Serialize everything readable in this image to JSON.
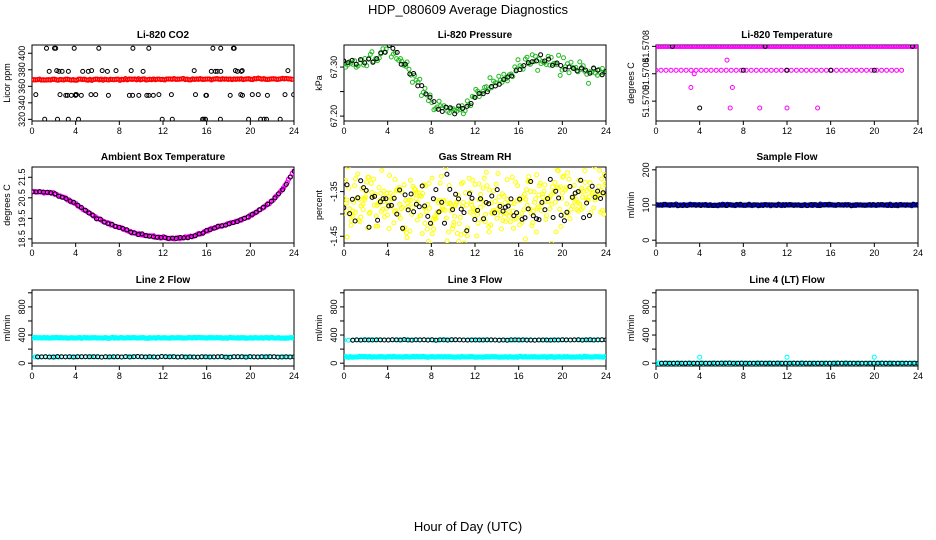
{
  "figure": {
    "title": "HDP_080609  Average Diagnostics",
    "xlabel": "Hour of Day (UTC)"
  },
  "chart_data": [
    {
      "id": "co2",
      "type": "scatter",
      "title": "Li-820 CO2",
      "ylabel": "Licor ppm",
      "xlim": [
        0,
        24
      ],
      "xticks": [
        0,
        4,
        8,
        12,
        16,
        20,
        24
      ],
      "xtick_labels": [
        "0",
        "4",
        "8",
        "12",
        "16",
        "20",
        "24"
      ],
      "ylim": [
        318,
        410
      ],
      "yticks": [
        320,
        340,
        360,
        380,
        400
      ],
      "ytick_labels": [
        "320",
        "340",
        "360",
        "380",
        "400"
      ],
      "series": [
        {
          "name": "co2-red",
          "color": "#ff0000",
          "gen": "flat",
          "x0": 0,
          "x1": 23.8,
          "n": 140,
          "y0": 368,
          "y1": 369,
          "noise": 0.4,
          "dense": true
        },
        {
          "name": "co2-black",
          "color": "#000000",
          "gen": "levels",
          "n": 80,
          "levels": [
            320,
            349,
            350,
            378,
            379,
            406
          ],
          "seed": 3
        }
      ]
    },
    {
      "id": "pressure",
      "type": "scatter",
      "title": "Li-820 Pressure",
      "ylabel": "kPa",
      "xlim": [
        0,
        24
      ],
      "xticks": [
        0,
        4,
        8,
        12,
        16,
        20,
        24
      ],
      "xtick_labels": [
        "0",
        "4",
        "8",
        "12",
        "16",
        "20",
        "24"
      ],
      "ylim": [
        67.19,
        67.345
      ],
      "yticks": [
        67.2,
        67.25,
        67.3
      ],
      "ytick_labels": [
        "67.20",
        "",
        "67.30"
      ],
      "series": [
        {
          "name": "pressure-green",
          "color": "#22bb22",
          "gen": "curve",
          "n": 150,
          "noise": 0.008,
          "curve": [
            [
              0,
              67.31
            ],
            [
              1,
              67.305
            ],
            [
              2,
              67.31
            ],
            [
              3,
              67.315
            ],
            [
              4,
              67.34
            ],
            [
              5,
              67.32
            ],
            [
              6,
              67.29
            ],
            [
              7,
              67.26
            ],
            [
              8,
              67.23
            ],
            [
              9,
              67.215
            ],
            [
              10,
              67.21
            ],
            [
              11,
              67.215
            ],
            [
              12,
              67.24
            ],
            [
              13,
              67.255
            ],
            [
              14,
              67.27
            ],
            [
              15,
              67.28
            ],
            [
              16,
              67.295
            ],
            [
              17,
              67.31
            ],
            [
              18,
              67.315
            ],
            [
              19,
              67.31
            ],
            [
              20,
              67.3
            ],
            [
              22,
              67.295
            ],
            [
              24,
              67.285
            ]
          ]
        },
        {
          "name": "pressure-black",
          "color": "#000000",
          "gen": "curve",
          "n": 65,
          "noise": 0.005,
          "curve": [
            [
              0,
              67.31
            ],
            [
              1,
              67.305
            ],
            [
              2,
              67.31
            ],
            [
              3,
              67.315
            ],
            [
              4,
              67.34
            ],
            [
              5,
              67.32
            ],
            [
              6,
              67.29
            ],
            [
              7,
              67.26
            ],
            [
              8,
              67.23
            ],
            [
              9,
              67.215
            ],
            [
              10,
              67.21
            ],
            [
              11,
              67.215
            ],
            [
              12,
              67.24
            ],
            [
              13,
              67.255
            ],
            [
              14,
              67.27
            ],
            [
              15,
              67.28
            ],
            [
              16,
              67.295
            ],
            [
              17,
              67.31
            ],
            [
              18,
              67.315
            ],
            [
              19,
              67.31
            ],
            [
              20,
              67.3
            ],
            [
              22,
              67.295
            ],
            [
              24,
              67.285
            ]
          ]
        }
      ]
    },
    {
      "id": "temperature",
      "type": "scatter",
      "title": "Li-820 Temperature",
      "ylabel": "degrees C",
      "xlim": [
        0,
        24
      ],
      "xticks": [
        0,
        4,
        8,
        12,
        16,
        20,
        24
      ],
      "xtick_labels": [
        "0",
        "4",
        "8",
        "12",
        "16",
        "20",
        "24"
      ],
      "ylim": [
        51.56971,
        51.57082
      ],
      "yticks": [
        51.57,
        51.5704,
        51.5708
      ],
      "ytick_labels": [
        "51.5700",
        "51.5704",
        "51.5708"
      ],
      "series": [
        {
          "name": "temp-magenta-top",
          "color": "#ff00ff",
          "gen": "flat",
          "x0": 0,
          "x1": 24,
          "n": 110,
          "y0": 51.5708,
          "y1": 51.5708,
          "noise": 0,
          "dense": true
        },
        {
          "name": "temp-magenta-mid",
          "color": "#ff00ff",
          "gen": "flat",
          "x0": 0,
          "x1": 22.5,
          "n": 50,
          "y0": 51.57045,
          "y1": 51.57045,
          "noise": 0
        },
        {
          "name": "temp-magenta-sparse",
          "color": "#ff00ff",
          "gen": "points",
          "x": [
            3.2,
            3.5,
            6.5,
            7.0,
            9.5,
            12.0,
            14.8,
            6.8
          ],
          "y": [
            51.5702,
            51.5704,
            51.5706,
            51.5702,
            51.5699,
            51.5699,
            51.5699,
            51.5699
          ]
        },
        {
          "name": "temp-black",
          "color": "#000000",
          "gen": "points",
          "x": [
            4.0,
            8.0,
            12.0,
            16.0,
            20.0,
            23.5,
            1.5,
            10.0
          ],
          "y": [
            51.5699,
            51.57045,
            51.57045,
            51.57045,
            51.57045,
            51.5708,
            51.5708,
            51.5708
          ]
        }
      ]
    },
    {
      "id": "ambient",
      "type": "scatter",
      "title": "Ambient Box Temperature",
      "ylabel": "degrees C",
      "xlim": [
        0,
        24
      ],
      "xticks": [
        0,
        4,
        8,
        12,
        16,
        20,
        24
      ],
      "xtick_labels": [
        "0",
        "4",
        "8",
        "12",
        "16",
        "20",
        "24"
      ],
      "ylim": [
        18.3,
        22.0
      ],
      "yticks": [
        18.5,
        19.5,
        20.5,
        21.5
      ],
      "ytick_labels": [
        "18.5",
        "19.5",
        "20.5",
        "21.5"
      ],
      "series": [
        {
          "name": "ambient-magenta",
          "color": "#ff00ff",
          "gen": "curve",
          "n": 150,
          "noise": 0.02,
          "dense": true,
          "curve": [
            [
              0,
              20.8
            ],
            [
              1,
              20.78
            ],
            [
              2,
              20.72
            ],
            [
              3,
              20.5
            ],
            [
              4,
              20.2
            ],
            [
              5,
              19.85
            ],
            [
              6,
              19.5
            ],
            [
              7,
              19.25
            ],
            [
              8,
              19.05
            ],
            [
              9,
              18.85
            ],
            [
              10,
              18.72
            ],
            [
              11,
              18.62
            ],
            [
              12,
              18.55
            ],
            [
              13,
              18.52
            ],
            [
              14,
              18.55
            ],
            [
              15,
              18.68
            ],
            [
              16,
              18.88
            ],
            [
              17,
              19.08
            ],
            [
              18,
              19.22
            ],
            [
              19,
              19.4
            ],
            [
              20,
              19.62
            ],
            [
              21,
              19.95
            ],
            [
              22,
              20.35
            ],
            [
              23,
              20.95
            ],
            [
              24,
              21.8
            ]
          ]
        },
        {
          "name": "ambient-black",
          "color": "#000000",
          "gen": "curve",
          "n": 70,
          "noise": 0.02,
          "curve": [
            [
              0,
              20.8
            ],
            [
              1,
              20.78
            ],
            [
              2,
              20.72
            ],
            [
              3,
              20.5
            ],
            [
              4,
              20.2
            ],
            [
              5,
              19.85
            ],
            [
              6,
              19.5
            ],
            [
              7,
              19.25
            ],
            [
              8,
              19.05
            ],
            [
              9,
              18.85
            ],
            [
              10,
              18.72
            ],
            [
              11,
              18.62
            ],
            [
              12,
              18.55
            ],
            [
              13,
              18.52
            ],
            [
              14,
              18.55
            ],
            [
              15,
              18.68
            ],
            [
              16,
              18.88
            ],
            [
              17,
              19.08
            ],
            [
              18,
              19.22
            ],
            [
              19,
              19.4
            ],
            [
              20,
              19.62
            ],
            [
              21,
              19.95
            ],
            [
              22,
              20.35
            ],
            [
              23,
              20.95
            ],
            [
              24,
              21.8
            ]
          ]
        }
      ]
    },
    {
      "id": "rh",
      "type": "scatter",
      "title": "Gas Stream RH",
      "ylabel": "percent",
      "xlim": [
        0,
        24
      ],
      "xticks": [
        0,
        4,
        8,
        12,
        16,
        20,
        24
      ],
      "xtick_labels": [
        "0",
        "4",
        "8",
        "12",
        "16",
        "20",
        "24"
      ],
      "ylim": [
        -1.465,
        -1.295
      ],
      "yticks": [
        -1.45,
        -1.4,
        -1.35
      ],
      "ytick_labels": [
        "-1.45",
        "",
        "-1.35"
      ],
      "series": [
        {
          "name": "rh-yellow",
          "color": "#ffff00",
          "gen": "curve",
          "n": 380,
          "noise": 0.038,
          "curve": [
            [
              0,
              -1.37
            ],
            [
              4,
              -1.375
            ],
            [
              8,
              -1.38
            ],
            [
              12,
              -1.39
            ],
            [
              16,
              -1.385
            ],
            [
              20,
              -1.37
            ],
            [
              24,
              -1.34
            ]
          ]
        },
        {
          "name": "rh-black",
          "color": "#000000",
          "gen": "curve",
          "n": 95,
          "noise": 0.026,
          "curve": [
            [
              0,
              -1.37
            ],
            [
              4,
              -1.375
            ],
            [
              8,
              -1.385
            ],
            [
              12,
              -1.395
            ],
            [
              16,
              -1.385
            ],
            [
              20,
              -1.37
            ],
            [
              24,
              -1.34
            ]
          ]
        }
      ]
    },
    {
      "id": "sample",
      "type": "scatter",
      "title": "Sample Flow",
      "ylabel": "ml/min",
      "xlim": [
        0,
        24
      ],
      "xticks": [
        0,
        4,
        8,
        12,
        16,
        20,
        24
      ],
      "xtick_labels": [
        "0",
        "4",
        "8",
        "12",
        "16",
        "20",
        "24"
      ],
      "ylim": [
        -8,
        208
      ],
      "yticks": [
        0,
        100,
        200
      ],
      "ytick_labels": [
        "0",
        "100",
        "200"
      ],
      "series": [
        {
          "name": "sample-blue",
          "color": "#0000cc",
          "gen": "flat",
          "x0": 0,
          "x1": 24,
          "n": 170,
          "y0": 100,
          "y1": 100,
          "noise": 1,
          "dense": true
        },
        {
          "name": "sample-black",
          "color": "#000000",
          "gen": "flat",
          "x0": 0,
          "x1": 24,
          "n": 60,
          "y0": 100,
          "y1": 100,
          "noise": 1
        }
      ]
    },
    {
      "id": "line2",
      "type": "scatter",
      "title": "Line 2 Flow",
      "ylabel": "ml/min",
      "xlim": [
        0,
        24
      ],
      "xticks": [
        0,
        4,
        8,
        12,
        16,
        20,
        24
      ],
      "xtick_labels": [
        "0",
        "4",
        "8",
        "12",
        "16",
        "20",
        "24"
      ],
      "ylim": [
        -40,
        1040
      ],
      "yticks": [
        0,
        200,
        400,
        600,
        800,
        1000
      ],
      "ytick_labels": [
        "0",
        "",
        "400",
        "",
        "800",
        ""
      ],
      "series": [
        {
          "name": "line2-cyan-high",
          "color": "#00ffff",
          "gen": "flat",
          "x0": 0,
          "x1": 24,
          "n": 170,
          "y0": 360,
          "y1": 360,
          "noise": 3,
          "dense": true
        },
        {
          "name": "line2-cyan-low",
          "color": "#00ffff",
          "gen": "flat",
          "x0": 0,
          "x1": 24,
          "n": 80,
          "y0": 90,
          "y1": 90,
          "noise": 2
        },
        {
          "name": "line2-black",
          "color": "#000000",
          "gen": "flat",
          "x0": 0.5,
          "x1": 24,
          "n": 65,
          "y0": 90,
          "y1": 90,
          "noise": 2
        }
      ]
    },
    {
      "id": "line3",
      "type": "scatter",
      "title": "Line 3 Flow",
      "ylabel": "ml/min",
      "xlim": [
        0,
        24
      ],
      "xticks": [
        0,
        4,
        8,
        12,
        16,
        20,
        24
      ],
      "xtick_labels": [
        "0",
        "4",
        "8",
        "12",
        "16",
        "20",
        "24"
      ],
      "ylim": [
        -40,
        1040
      ],
      "yticks": [
        0,
        200,
        400,
        600,
        800,
        1000
      ],
      "ytick_labels": [
        "0",
        "",
        "400",
        "",
        "800",
        ""
      ],
      "series": [
        {
          "name": "line3-cyan-low",
          "color": "#00ffff",
          "gen": "flat",
          "x0": 0,
          "x1": 24,
          "n": 170,
          "y0": 90,
          "y1": 90,
          "noise": 3,
          "dense": true
        },
        {
          "name": "line3-cyan-high",
          "color": "#00ffff",
          "gen": "flat",
          "x0": 0,
          "x1": 24,
          "n": 60,
          "y0": 330,
          "y1": 330,
          "noise": 2
        },
        {
          "name": "line3-black",
          "color": "#000000",
          "gen": "flat",
          "x0": 0.8,
          "x1": 24,
          "n": 65,
          "y0": 330,
          "y1": 330,
          "noise": 2
        }
      ]
    },
    {
      "id": "line4",
      "type": "scatter",
      "title": "Line 4 (LT) Flow",
      "ylabel": "ml/min",
      "xlim": [
        0,
        24
      ],
      "xticks": [
        0,
        4,
        8,
        12,
        16,
        20,
        24
      ],
      "xtick_labels": [
        "0",
        "4",
        "8",
        "12",
        "16",
        "20",
        "24"
      ],
      "ylim": [
        -40,
        1040
      ],
      "yticks": [
        0,
        200,
        400,
        600,
        800,
        1000
      ],
      "ytick_labels": [
        "0",
        "",
        "400",
        "",
        "800",
        ""
      ],
      "series": [
        {
          "name": "line4-cyan",
          "color": "#00ffff",
          "gen": "flat",
          "x0": 0,
          "x1": 24,
          "n": 90,
          "y0": 0,
          "y1": 0,
          "noise": 1,
          "dense": true
        },
        {
          "name": "line4-cyan-spikes",
          "color": "#00ffff",
          "gen": "points",
          "x": [
            4.0,
            12.0,
            20.0
          ],
          "y": [
            85,
            85,
            85
          ]
        },
        {
          "name": "line4-black",
          "color": "#000000",
          "gen": "flat",
          "x0": 0.5,
          "x1": 24,
          "n": 65,
          "y0": 0,
          "y1": 0,
          "noise": 1
        }
      ]
    }
  ]
}
